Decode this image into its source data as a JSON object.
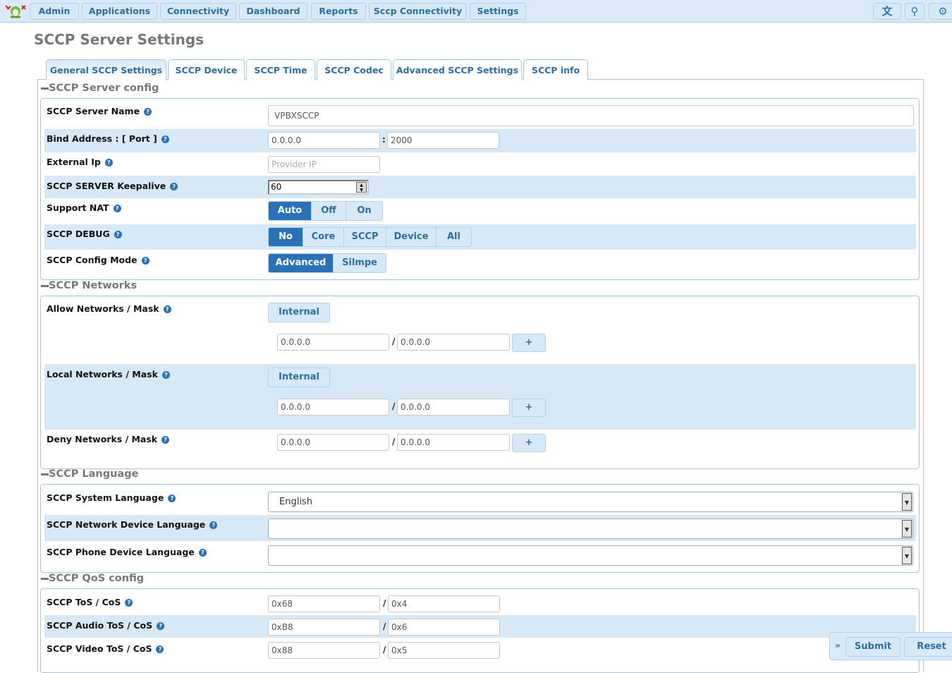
{
  "nav": {
    "items": [
      "Admin",
      "Applications",
      "Connectivity",
      "Dashboard",
      "Reports",
      "Sccp Connectivity",
      "Settings"
    ],
    "icons": [
      "language-icon",
      "search-icon",
      "gear-icon"
    ]
  },
  "page_title": "SCCP Server Settings",
  "tabs": [
    "General SCCP Settings",
    "SCCP Device",
    "SCCP Time",
    "SCCP Codec",
    "Advanced SCCP Settings",
    "SCCP info"
  ],
  "server": {
    "legend": "SCCP Server config",
    "name_label": "SCCP Server Name",
    "name_value": "VPBXSCCP",
    "bind_label": "Bind Address : [ Port ]",
    "bind_value": "0.0.0.0",
    "port_value": "2000",
    "colon": ":",
    "extip_label": "External Ip",
    "extip_placeholder": "Provider IP",
    "keepalive_label": "SCCP SERVER Keepalive",
    "keepalive_value": "60",
    "nat_label": "Support NAT",
    "nat_options": [
      "Auto",
      "Off",
      "On"
    ],
    "nat_selected": "Auto",
    "debug_label": "SCCP DEBUG",
    "debug_options": [
      "No",
      "Core",
      "SCCP",
      "Device",
      "All"
    ],
    "debug_selected": "No",
    "mode_label": "SCCP Config Mode",
    "mode_options": [
      "Advanced",
      "Silmpe"
    ],
    "mode_selected": "Advanced"
  },
  "networks": {
    "legend": "SCCP Networks",
    "slash": "/",
    "add": "+",
    "internal": "Internal",
    "allow_label": "Allow Networks / Mask",
    "allow_net": "0.0.0.0",
    "allow_mask": "0.0.0.0",
    "local_label": "Local Networks / Mask",
    "local_net": "0.0.0.0",
    "local_mask": "0.0.0.0",
    "deny_label": "Deny Networks / Mask",
    "deny_net": "0.0.0.0",
    "deny_mask": "0.0.0.0"
  },
  "language": {
    "legend": "SCCP Language",
    "system_label": "SCCP System Language",
    "system_value": "English",
    "network_label": "SCCP Network Device Language",
    "network_value": "",
    "phone_label": "SCCP Phone Device Language",
    "phone_value": ""
  },
  "qos": {
    "legend": "SCCP QoS config",
    "slash": "/",
    "tos_label": "SCCP ToS / CoS",
    "tos": "0x68",
    "cos": "0x4",
    "audio_label": "SCCP Audio ToS / CoS",
    "audio_tos": "0xB8",
    "audio_cos": "0x6",
    "video_label": "SCCP Video ToS / CoS",
    "video_tos": "0x88",
    "video_cos": "0x5"
  },
  "footer": {
    "submit": "Submit",
    "reset": "Reset",
    "expand": "»"
  },
  "colors": {
    "accent": "#2a72b5",
    "light": "#d7e9f7",
    "border": "#a6c9e2"
  }
}
